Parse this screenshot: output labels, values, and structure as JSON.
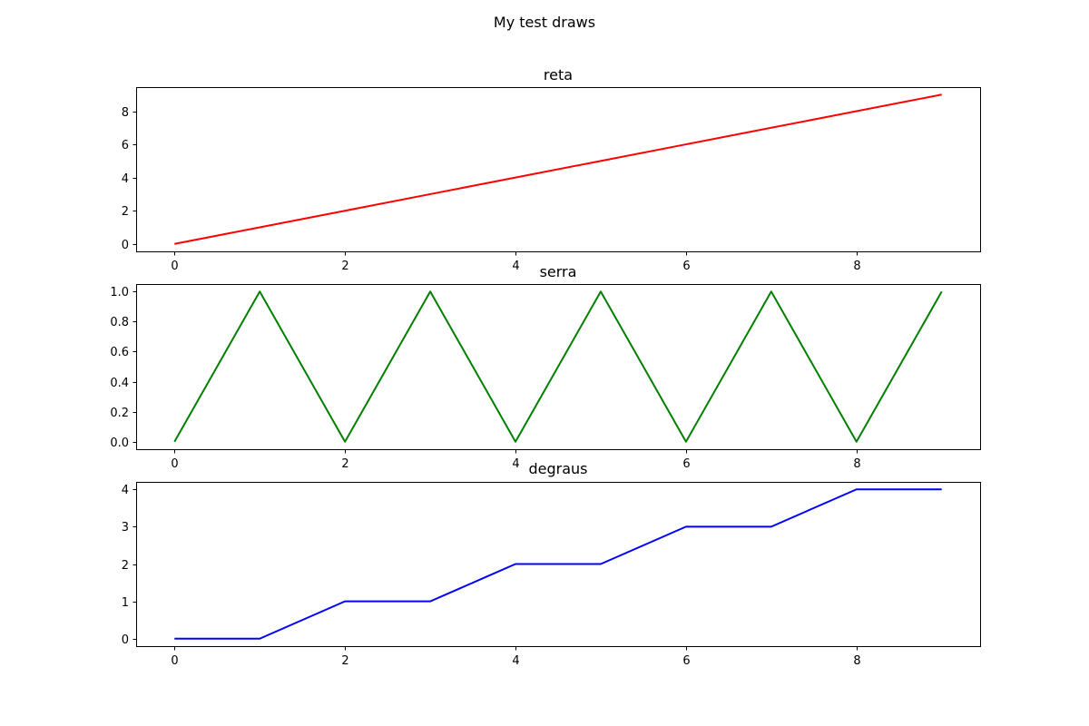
{
  "figure": {
    "suptitle": "My test draws"
  },
  "chart_data": [
    {
      "type": "line",
      "title": "reta",
      "xlabel": "",
      "ylabel": "",
      "x": [
        0,
        1,
        2,
        3,
        4,
        5,
        6,
        7,
        8,
        9
      ],
      "series": [
        {
          "values": [
            0,
            1,
            2,
            3,
            4,
            5,
            6,
            7,
            8,
            9
          ],
          "color": "#ff0000"
        }
      ],
      "xlim": [
        -0.45,
        9.45
      ],
      "ylim": [
        -0.45,
        9.45
      ],
      "xticks": [
        0,
        2,
        4,
        6,
        8
      ],
      "xtick_labels": [
        "0",
        "2",
        "4",
        "6",
        "8"
      ],
      "yticks": [
        0,
        2,
        4,
        6,
        8
      ],
      "ytick_labels": [
        "0",
        "2",
        "4",
        "6",
        "8"
      ],
      "grid": false
    },
    {
      "type": "line",
      "title": "serra",
      "xlabel": "",
      "ylabel": "",
      "x": [
        0,
        1,
        2,
        3,
        4,
        5,
        6,
        7,
        8,
        9
      ],
      "series": [
        {
          "values": [
            0,
            1,
            0,
            1,
            0,
            1,
            0,
            1,
            0,
            1
          ],
          "color": "#008000"
        }
      ],
      "xlim": [
        -0.45,
        9.45
      ],
      "ylim": [
        -0.05,
        1.05
      ],
      "xticks": [
        0,
        2,
        4,
        6,
        8
      ],
      "xtick_labels": [
        "0",
        "2",
        "4",
        "6",
        "8"
      ],
      "yticks": [
        0.0,
        0.2,
        0.4,
        0.6,
        0.8,
        1.0
      ],
      "ytick_labels": [
        "0.0",
        "0.2",
        "0.4",
        "0.6",
        "0.8",
        "1.0"
      ],
      "grid": false
    },
    {
      "type": "line",
      "title": "degraus",
      "xlabel": "",
      "ylabel": "",
      "x": [
        0,
        1,
        2,
        3,
        4,
        5,
        6,
        7,
        8,
        9
      ],
      "series": [
        {
          "values": [
            0,
            0,
            1,
            1,
            2,
            2,
            3,
            3,
            4,
            4
          ],
          "color": "#0000ff"
        }
      ],
      "xlim": [
        -0.45,
        9.45
      ],
      "ylim": [
        -0.2,
        4.2
      ],
      "xticks": [
        0,
        2,
        4,
        6,
        8
      ],
      "xtick_labels": [
        "0",
        "2",
        "4",
        "6",
        "8"
      ],
      "yticks": [
        0,
        1,
        2,
        3,
        4
      ],
      "ytick_labels": [
        "0",
        "1",
        "2",
        "3",
        "4"
      ],
      "grid": false
    }
  ]
}
